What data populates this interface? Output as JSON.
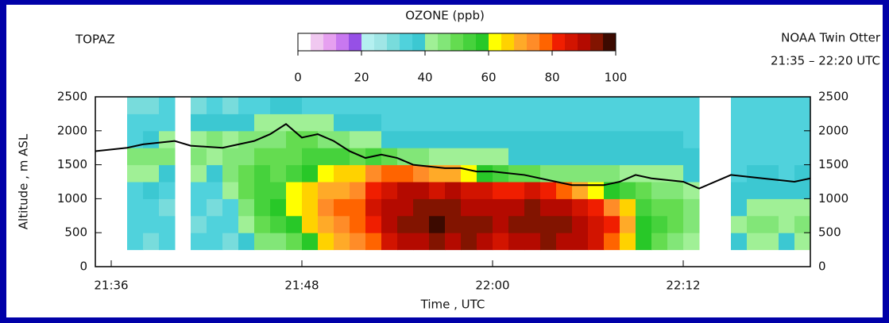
{
  "chart_data": {
    "type": "heatmap",
    "title": "OZONE (ppb)",
    "left_label": "TOPAZ",
    "right_label": "NOAA Twin Otter",
    "subtitle": "21:35 – 22:20 UTC",
    "x_label": "Time , UTC",
    "y_label": "Altitude , m ASL",
    "xlim": [
      1295,
      1340
    ],
    "xticks": [
      {
        "value": 1296,
        "label": "21:36"
      },
      {
        "value": 1308,
        "label": "21:48"
      },
      {
        "value": 1320,
        "label": "22:00"
      },
      {
        "value": 1332,
        "label": "22:12"
      }
    ],
    "ylim": [
      0,
      2500
    ],
    "yticks": [
      0,
      500,
      1000,
      1500,
      2000,
      2500
    ],
    "clim": [
      0,
      100
    ],
    "cticks": [
      0,
      20,
      40,
      60,
      80,
      100
    ],
    "colors": [
      "#ffffff",
      "#f0c8f0",
      "#e6a0f0",
      "#c878f0",
      "#9650e6",
      "#b4f0f0",
      "#a0e6e6",
      "#78dcdc",
      "#50d2dc",
      "#3cc8d2",
      "#a0f096",
      "#82e678",
      "#64dc50",
      "#46d23c",
      "#28c828",
      "#ffff00",
      "#ffd200",
      "#ffaa28",
      "#ff8c28",
      "#ff6400",
      "#f01e00",
      "#d21400",
      "#b40a00",
      "#821400",
      "#3c0a00"
    ],
    "x": [
      1295.5,
      1296.5,
      1297.5,
      1298.5,
      1299.5,
      1300.5,
      1301.5,
      1302.5,
      1303.5,
      1304.5,
      1305.5,
      1306.5,
      1307.5,
      1308.5,
      1309.5,
      1310.5,
      1311.5,
      1312.5,
      1313.5,
      1314.5,
      1315.5,
      1316.5,
      1317.5,
      1318.5,
      1319.5,
      1320.5,
      1321.5,
      1322.5,
      1323.5,
      1324.5,
      1325.5,
      1326.5,
      1327.5,
      1328.5,
      1329.5,
      1330.5,
      1331.5,
      1332.5,
      1333.5,
      1334.5,
      1335.5,
      1336.5,
      1337.5,
      1338.5,
      1339.5
    ],
    "y": [
      375,
      625,
      875,
      1125,
      1375,
      1625,
      1875,
      2125,
      2375
    ],
    "z": [
      null,
      null,
      [
        32,
        34,
        33,
        35,
        42,
        45,
        34,
        32,
        30
      ],
      [
        30,
        32,
        34,
        36,
        40,
        46,
        38,
        32,
        30
      ],
      [
        34,
        32,
        30,
        33,
        38,
        44,
        40,
        34,
        32
      ],
      null,
      [
        33,
        30,
        34,
        32,
        40,
        44,
        42,
        36,
        30
      ],
      [
        32,
        34,
        30,
        34,
        38,
        42,
        44,
        38,
        32
      ],
      [
        30,
        32,
        35,
        40,
        46,
        44,
        42,
        36,
        30
      ],
      [
        36,
        42,
        46,
        50,
        48,
        46,
        44,
        38,
        32
      ],
      [
        44,
        50,
        52,
        54,
        52,
        48,
        46,
        40,
        34
      ],
      [
        46,
        52,
        56,
        54,
        50,
        48,
        46,
        42,
        36
      ],
      [
        50,
        56,
        62,
        60,
        54,
        50,
        48,
        42,
        36
      ],
      [
        58,
        64,
        66,
        64,
        58,
        52,
        48,
        42,
        34
      ],
      [
        66,
        70,
        72,
        68,
        62,
        54,
        46,
        40,
        34
      ],
      [
        70,
        74,
        76,
        70,
        64,
        52,
        44,
        38,
        32
      ],
      [
        72,
        76,
        78,
        74,
        66,
        50,
        42,
        36,
        32
      ],
      [
        76,
        82,
        84,
        80,
        72,
        54,
        40,
        36,
        32
      ],
      [
        84,
        88,
        90,
        86,
        76,
        48,
        38,
        34,
        32
      ],
      [
        88,
        92,
        90,
        88,
        78,
        46,
        38,
        34,
        32
      ],
      [
        90,
        94,
        92,
        88,
        74,
        44,
        36,
        34,
        32
      ],
      [
        92,
        96,
        94,
        86,
        70,
        42,
        36,
        34,
        32
      ],
      [
        90,
        94,
        92,
        88,
        68,
        42,
        36,
        34,
        32
      ],
      [
        92,
        94,
        90,
        86,
        62,
        40,
        36,
        34,
        32
      ],
      [
        88,
        92,
        90,
        84,
        58,
        40,
        36,
        34,
        32
      ],
      [
        86,
        90,
        88,
        80,
        52,
        40,
        36,
        34,
        32
      ],
      [
        88,
        92,
        90,
        82,
        50,
        38,
        36,
        34,
        32
      ],
      [
        90,
        94,
        92,
        84,
        48,
        38,
        36,
        34,
        32
      ],
      [
        92,
        94,
        90,
        82,
        46,
        38,
        36,
        34,
        32
      ],
      [
        90,
        92,
        88,
        78,
        44,
        38,
        36,
        34,
        32
      ],
      [
        88,
        90,
        86,
        70,
        44,
        38,
        36,
        34,
        32
      ],
      [
        84,
        86,
        82,
        62,
        44,
        38,
        36,
        34,
        32
      ],
      [
        78,
        80,
        74,
        56,
        44,
        38,
        36,
        34,
        32
      ],
      [
        66,
        70,
        64,
        52,
        42,
        38,
        36,
        34,
        32
      ],
      [
        56,
        58,
        54,
        48,
        42,
        38,
        36,
        34,
        32
      ],
      [
        48,
        52,
        50,
        46,
        42,
        38,
        36,
        34,
        32
      ],
      [
        46,
        50,
        48,
        46,
        40,
        38,
        36,
        34,
        32
      ],
      [
        42,
        46,
        44,
        42,
        38,
        36,
        34,
        34,
        32
      ],
      null,
      null,
      [
        36,
        40,
        38,
        36,
        34,
        34,
        34,
        32,
        32
      ],
      [
        40,
        44,
        40,
        38,
        36,
        34,
        34,
        32,
        32
      ],
      [
        42,
        44,
        42,
        38,
        36,
        34,
        34,
        32,
        32
      ],
      [
        38,
        42,
        40,
        36,
        34,
        34,
        34,
        32,
        32
      ],
      [
        40,
        44,
        42,
        38,
        36,
        34,
        34,
        32,
        32
      ]
    ],
    "series": [
      {
        "color": "#000000",
        "x": [
          1295,
          1297,
          1298,
          1300,
          1301,
          1303,
          1305,
          1306,
          1307,
          1308,
          1309,
          1310,
          1311,
          1312,
          1313,
          1314,
          1315,
          1317,
          1318,
          1319,
          1320,
          1322,
          1324,
          1325,
          1327,
          1328,
          1329,
          1330,
          1332,
          1333,
          1335,
          1337,
          1339,
          1340
        ],
        "values": [
          1700,
          1750,
          1800,
          1850,
          1780,
          1750,
          1850,
          1950,
          2100,
          1900,
          1950,
          1850,
          1700,
          1600,
          1650,
          1600,
          1500,
          1450,
          1450,
          1400,
          1400,
          1350,
          1250,
          1200,
          1200,
          1250,
          1350,
          1300,
          1250,
          1150,
          1350,
          1300,
          1250,
          1300
        ]
      }
    ]
  }
}
